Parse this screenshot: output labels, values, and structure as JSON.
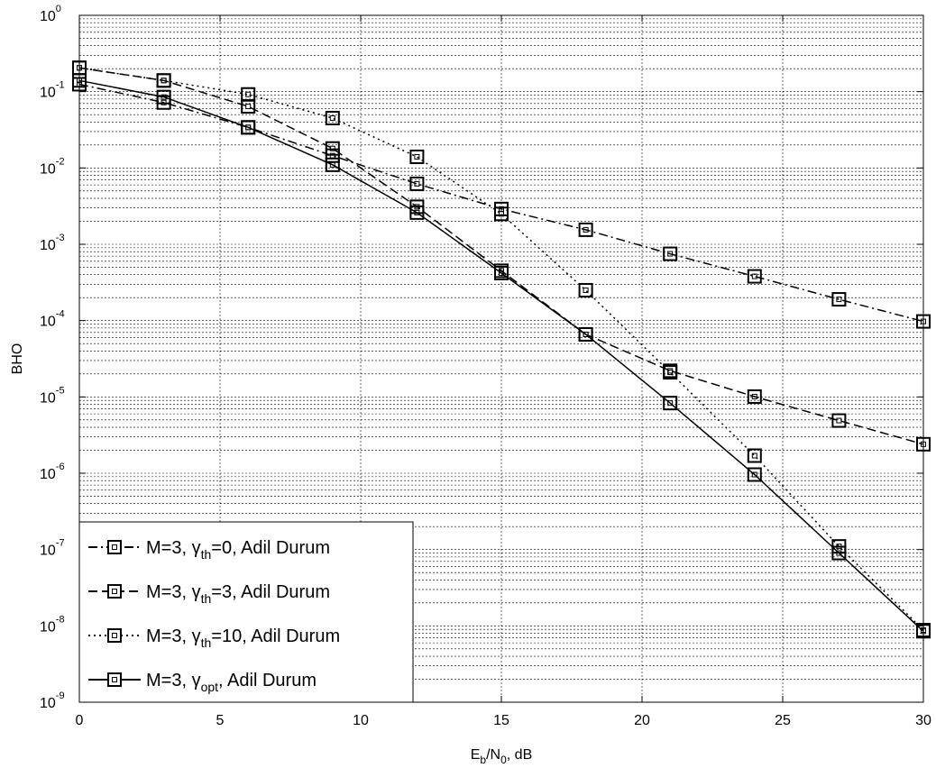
{
  "chart_data": {
    "type": "line",
    "title": "",
    "xlabel": {
      "base": "E",
      "sub1": "b",
      "mid": "/N",
      "sub2": "0",
      "tail": ", dB"
    },
    "ylabel": "BHO",
    "yscale": "log",
    "xlim": [
      0,
      30
    ],
    "ylim": [
      1e-09,
      1
    ],
    "grid": true,
    "legend_position": "bottom-left",
    "x_ticks": [
      "0",
      "5",
      "10",
      "15",
      "20",
      "25",
      "30"
    ],
    "y_ticks": [
      {
        "base": "10",
        "exp": "0"
      },
      {
        "base": "10",
        "exp": "-1"
      },
      {
        "base": "10",
        "exp": "-2"
      },
      {
        "base": "10",
        "exp": "-3"
      },
      {
        "base": "10",
        "exp": "-4"
      },
      {
        "base": "10",
        "exp": "-5"
      },
      {
        "base": "10",
        "exp": "-6"
      },
      {
        "base": "10",
        "exp": "-7"
      },
      {
        "base": "10",
        "exp": "-8"
      },
      {
        "base": "10",
        "exp": "-9"
      }
    ],
    "x": [
      0,
      3,
      6,
      9,
      12,
      15,
      18,
      21,
      24,
      27,
      30
    ],
    "series": [
      {
        "label": {
          "pre": "M=3, γ",
          "sub": "th",
          "post": "=0,  Adil Durum"
        },
        "linestyle": "dashdot",
        "marker": "square",
        "color": "#000000",
        "values": [
          0.125,
          0.072,
          0.034,
          0.0145,
          0.0062,
          0.0029,
          0.00155,
          0.00075,
          0.00038,
          0.00019,
          9.75e-05
        ]
      },
      {
        "label": {
          "pre": "M=3, γ",
          "sub": "th",
          "post": "=3,  Adil Durum"
        },
        "linestyle": "dashed",
        "marker": "square",
        "color": "#000000",
        "values": [
          0.205,
          0.14,
          0.064,
          0.018,
          0.0031,
          0.00045,
          6.6e-05,
          2.2e-05,
          1.01e-05,
          4.9e-06,
          2.4e-06
        ]
      },
      {
        "label": {
          "pre": "M=3, γ",
          "sub": "th",
          "post": "=10, Adil Durum"
        },
        "linestyle": "dotted",
        "marker": "square",
        "color": "#000000",
        "values": [
          0.205,
          0.14,
          0.092,
          0.045,
          0.014,
          0.0025,
          0.00025,
          2.1e-05,
          1.7e-06,
          1.1e-07,
          8.8e-09
        ]
      },
      {
        "label": {
          "pre": "M=3, γ",
          "sub": "opt",
          "post": ", Adil Durum"
        },
        "linestyle": "solid",
        "marker": "square",
        "color": "#000000",
        "values": [
          0.14,
          0.085,
          0.034,
          0.011,
          0.0026,
          0.00042,
          6.6e-05,
          8.3e-06,
          9.6e-07,
          9e-08,
          8.5e-09
        ]
      }
    ]
  }
}
